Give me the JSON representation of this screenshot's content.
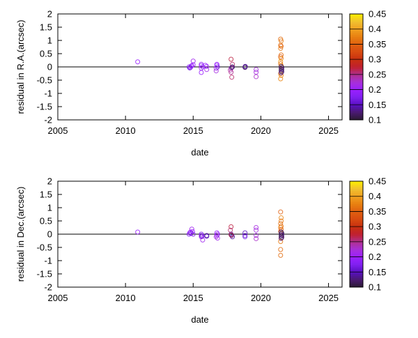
{
  "chart_data": [
    {
      "type": "scatter",
      "xlabel": "date",
      "ylabel": "residual in R.A.(arcsec)",
      "xlim": [
        2005,
        2026
      ],
      "ylim": [
        -2,
        2
      ],
      "xticks": [
        2005,
        2010,
        2015,
        2020,
        2025
      ],
      "yticks": [
        -2,
        -1.5,
        -1,
        -0.5,
        0,
        0.5,
        1,
        1.5,
        2
      ],
      "colorbar": {
        "range": [
          0.1,
          0.45
        ],
        "ticks": [
          0.1,
          0.15,
          0.2,
          0.25,
          0.3,
          0.35,
          0.4,
          0.45
        ]
      },
      "zero_line": true,
      "grid": false,
      "marker": "open-circle",
      "points": [
        [
          2010.9,
          0.19,
          0.2
        ],
        [
          2014.7,
          0.0,
          0.18
        ],
        [
          2014.8,
          -0.02,
          0.19
        ],
        [
          2014.85,
          0.03,
          0.18
        ],
        [
          2014.9,
          0.05,
          0.2
        ],
        [
          2015.0,
          0.22,
          0.21
        ],
        [
          2015.0,
          0.08,
          0.2
        ],
        [
          2014.75,
          -0.04,
          0.17
        ],
        [
          2015.6,
          0.05,
          0.2
        ],
        [
          2015.6,
          0.1,
          0.19
        ],
        [
          2015.6,
          -0.05,
          0.21
        ],
        [
          2015.6,
          -0.21,
          0.2
        ],
        [
          2015.7,
          0.0,
          0.18
        ],
        [
          2016.0,
          0.02,
          0.2
        ],
        [
          2016.0,
          -0.1,
          0.21
        ],
        [
          2015.9,
          0.06,
          0.2
        ],
        [
          2016.75,
          0.06,
          0.19
        ],
        [
          2016.75,
          0.1,
          0.2
        ],
        [
          2016.7,
          -0.05,
          0.21
        ],
        [
          2016.7,
          -0.15,
          0.22
        ],
        [
          2016.8,
          0.0,
          0.17
        ],
        [
          2017.8,
          0.29,
          0.27
        ],
        [
          2017.9,
          0.1,
          0.26
        ],
        [
          2017.8,
          -0.05,
          0.23
        ],
        [
          2017.75,
          -0.12,
          0.24
        ],
        [
          2017.8,
          -0.2,
          0.25
        ],
        [
          2017.85,
          -0.39,
          0.26
        ],
        [
          2017.85,
          -0.02,
          0.13
        ],
        [
          2017.9,
          0.0,
          0.12
        ],
        [
          2018.83,
          0.0,
          0.13
        ],
        [
          2018.83,
          -0.02,
          0.12
        ],
        [
          2018.85,
          0.02,
          0.14
        ],
        [
          2019.65,
          -0.1,
          0.22
        ],
        [
          2019.65,
          -0.2,
          0.22
        ],
        [
          2019.65,
          -0.37,
          0.23
        ],
        [
          2021.46,
          1.05,
          0.36
        ],
        [
          2021.5,
          0.98,
          0.37
        ],
        [
          2021.46,
          0.82,
          0.36
        ],
        [
          2021.5,
          0.78,
          0.35
        ],
        [
          2021.46,
          0.7,
          0.37
        ],
        [
          2021.5,
          0.45,
          0.36
        ],
        [
          2021.46,
          0.38,
          0.34
        ],
        [
          2021.5,
          0.32,
          0.38
        ],
        [
          2021.46,
          0.2,
          0.4
        ],
        [
          2021.46,
          0.12,
          0.36
        ],
        [
          2021.5,
          0.05,
          0.39
        ],
        [
          2021.46,
          -0.25,
          0.37
        ],
        [
          2021.5,
          -0.32,
          0.38
        ],
        [
          2021.46,
          -0.45,
          0.38
        ],
        [
          2021.5,
          0.02,
          0.12
        ],
        [
          2021.55,
          -0.02,
          0.11
        ],
        [
          2021.5,
          -0.06,
          0.12
        ],
        [
          2021.55,
          -0.1,
          0.13
        ],
        [
          2021.5,
          -0.14,
          0.11
        ],
        [
          2021.55,
          -0.18,
          0.12
        ],
        [
          2021.5,
          -0.22,
          0.13
        ]
      ]
    },
    {
      "type": "scatter",
      "xlabel": "date",
      "ylabel": "residual in Dec.(arcsec)",
      "xlim": [
        2005,
        2026
      ],
      "ylim": [
        -2,
        2
      ],
      "xticks": [
        2005,
        2010,
        2015,
        2020,
        2025
      ],
      "yticks": [
        -2,
        -1.5,
        -1,
        -0.5,
        0,
        0.5,
        1,
        1.5,
        2
      ],
      "colorbar": {
        "range": [
          0.1,
          0.45
        ],
        "ticks": [
          0.1,
          0.15,
          0.2,
          0.25,
          0.3,
          0.35,
          0.4,
          0.45
        ]
      },
      "zero_line": true,
      "grid": false,
      "marker": "open-circle",
      "points": [
        [
          2010.9,
          0.08,
          0.2
        ],
        [
          2014.7,
          0.0,
          0.18
        ],
        [
          2014.75,
          0.05,
          0.19
        ],
        [
          2014.8,
          0.08,
          0.2
        ],
        [
          2014.9,
          0.19,
          0.21
        ],
        [
          2014.95,
          0.1,
          0.2
        ],
        [
          2015.0,
          0.0,
          0.18
        ],
        [
          2014.85,
          0.03,
          0.17
        ],
        [
          2015.6,
          0.0,
          0.17
        ],
        [
          2015.6,
          -0.05,
          0.19
        ],
        [
          2015.6,
          -0.1,
          0.21
        ],
        [
          2015.7,
          -0.22,
          0.21
        ],
        [
          2015.65,
          -0.08,
          0.16
        ],
        [
          2016.0,
          -0.05,
          0.14
        ],
        [
          2016.0,
          -0.08,
          0.15
        ],
        [
          2016.75,
          0.05,
          0.2
        ],
        [
          2016.75,
          -0.05,
          0.21
        ],
        [
          2016.7,
          -0.1,
          0.22
        ],
        [
          2016.8,
          -0.15,
          0.21
        ],
        [
          2016.8,
          0.0,
          0.19
        ],
        [
          2017.8,
          0.28,
          0.27
        ],
        [
          2017.75,
          0.15,
          0.26
        ],
        [
          2017.8,
          0.0,
          0.14
        ],
        [
          2017.85,
          -0.05,
          0.13
        ],
        [
          2017.9,
          -0.1,
          0.14
        ],
        [
          2017.8,
          -0.03,
          0.27
        ],
        [
          2018.83,
          0.05,
          0.15
        ],
        [
          2018.83,
          -0.05,
          0.16
        ],
        [
          2018.83,
          -0.1,
          0.17
        ],
        [
          2019.65,
          0.25,
          0.22
        ],
        [
          2019.65,
          0.15,
          0.22
        ],
        [
          2019.65,
          -0.05,
          0.22
        ],
        [
          2019.65,
          -0.17,
          0.23
        ],
        [
          2021.46,
          0.84,
          0.35
        ],
        [
          2021.5,
          0.62,
          0.38
        ],
        [
          2021.5,
          0.5,
          0.37
        ],
        [
          2021.46,
          0.4,
          0.36
        ],
        [
          2021.5,
          0.3,
          0.36
        ],
        [
          2021.46,
          0.25,
          0.38
        ],
        [
          2021.5,
          0.18,
          0.35
        ],
        [
          2021.46,
          0.1,
          0.34
        ],
        [
          2021.5,
          -0.15,
          0.36
        ],
        [
          2021.46,
          -0.28,
          0.37
        ],
        [
          2021.46,
          -0.58,
          0.36
        ],
        [
          2021.46,
          -0.8,
          0.36
        ],
        [
          2021.5,
          0.08,
          0.12
        ],
        [
          2021.55,
          0.04,
          0.11
        ],
        [
          2021.5,
          0.0,
          0.12
        ],
        [
          2021.55,
          -0.04,
          0.13
        ],
        [
          2021.5,
          -0.08,
          0.11
        ],
        [
          2021.55,
          -0.12,
          0.12
        ],
        [
          2021.5,
          -0.16,
          0.13
        ]
      ]
    }
  ]
}
